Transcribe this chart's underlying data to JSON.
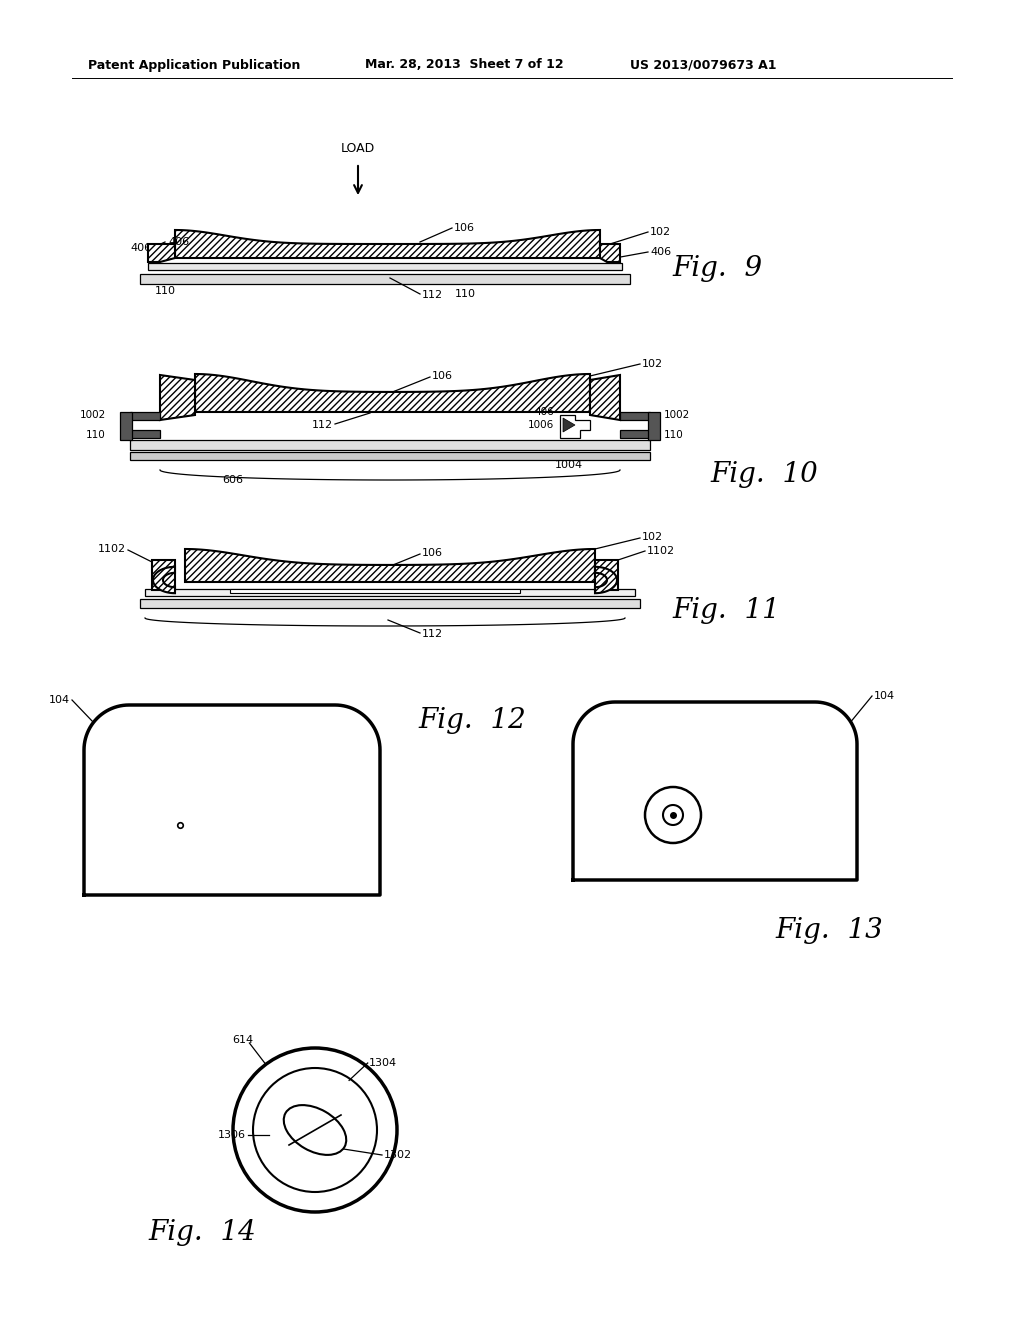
{
  "bg_color": "#ffffff",
  "header_left": "Patent Application Publication",
  "header_mid": "Mar. 28, 2013  Sheet 7 of 12",
  "header_right": "US 2013/0079673 A1",
  "fig9_label": "Fig.  9",
  "fig10_label": "Fig.  10",
  "fig11_label": "Fig.  11",
  "fig12_label": "Fig.  12",
  "fig13_label": "Fig.  13",
  "fig14_label": "Fig.  14"
}
